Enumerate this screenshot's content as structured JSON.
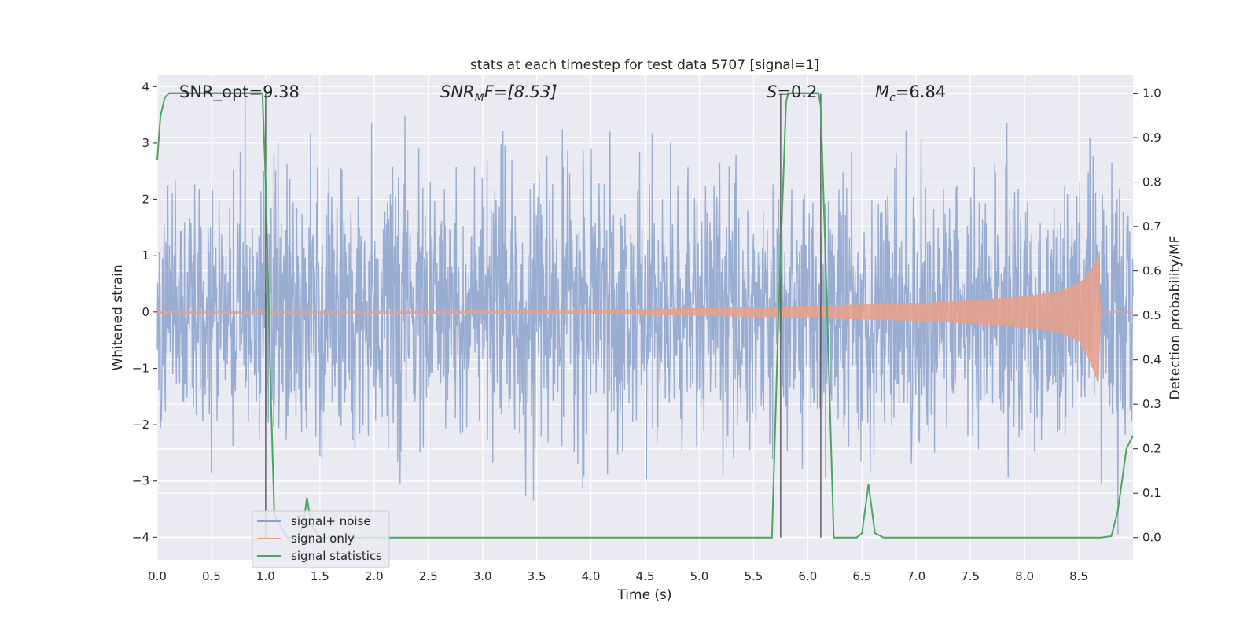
{
  "chart_data": {
    "type": "line",
    "title": "stats at each timestep for test data 5707 [signal=1]",
    "xlabel": "Time (s)",
    "ylabel": "Whitened strain",
    "ylabel_right": "Detection probability/MF",
    "xlim": [
      0,
      9
    ],
    "ylim": [
      -4.4,
      4.2
    ],
    "ylim_right": [
      -0.05,
      1.04
    ],
    "x_ticks": [
      "0.0",
      "0.5",
      "1.0",
      "1.5",
      "2.0",
      "2.5",
      "3.0",
      "3.5",
      "4.0",
      "4.5",
      "5.0",
      "5.5",
      "6.0",
      "6.5",
      "7.0",
      "7.5",
      "8.0",
      "8.5"
    ],
    "y_ticks": [
      "−4",
      "−3",
      "−2",
      "−1",
      "0",
      "1",
      "2",
      "3",
      "4"
    ],
    "y_ticks_right": [
      "0.0",
      "0.1",
      "0.2",
      "0.3",
      "0.4",
      "0.5",
      "0.6",
      "0.7",
      "0.8",
      "0.9",
      "1.0"
    ],
    "grid": true,
    "legend_placement": "lower-left",
    "annotations": {
      "snr_opt": "SNR_opt=9.38",
      "snr_mf_name": "SNR",
      "snr_mf_sub": "M",
      "snr_mf_rest": "F=[8.53]",
      "s_name": "S",
      "s_rest": "=0.2",
      "mc_name": "M",
      "mc_sub": "c",
      "mc_rest": "=6.84"
    },
    "series": [
      {
        "name": "signal+ noise",
        "color": "#8ba2cc",
        "description_values": "noise-dominated strain, amplitude roughly within ±3.5"
      },
      {
        "name": "signal only",
        "color": "#e8a08a",
        "envelope_x": [
          0.0,
          2.0,
          4.0,
          5.0,
          6.0,
          7.0,
          7.5,
          8.0,
          8.3,
          8.5,
          8.6,
          8.68,
          8.7
        ],
        "envelope_y": [
          0.02,
          0.02,
          0.03,
          0.06,
          0.1,
          0.15,
          0.2,
          0.27,
          0.35,
          0.5,
          0.68,
          1.0,
          0.0
        ]
      },
      {
        "name": "signal statistics",
        "color": "#4ca560",
        "x": [
          0.0,
          0.03,
          0.07,
          0.11,
          0.2,
          0.5,
          0.97,
          1.0,
          1.05,
          1.08,
          1.2,
          1.3,
          1.35,
          1.38,
          1.42,
          1.5,
          2.0,
          3.0,
          4.0,
          5.0,
          5.67,
          5.73,
          5.8,
          5.82,
          5.9,
          6.1,
          6.12,
          6.18,
          6.24,
          6.3,
          6.45,
          6.5,
          6.56,
          6.62,
          6.7,
          7.0,
          8.0,
          8.7,
          8.8,
          8.86,
          8.94,
          9.0
        ],
        "y": [
          0.85,
          0.95,
          0.99,
          1.0,
          1.0,
          1.0,
          1.0,
          0.8,
          0.3,
          0.05,
          0.0,
          0.0,
          0.03,
          0.09,
          0.03,
          0.0,
          0.0,
          0.0,
          0.0,
          0.0,
          0.0,
          0.5,
          0.98,
          1.0,
          1.0,
          1.0,
          0.97,
          0.5,
          0.0,
          0.0,
          0.0,
          0.01,
          0.12,
          0.01,
          0.0,
          0.0,
          0.0,
          0.0,
          0.003,
          0.06,
          0.2,
          0.23
        ]
      }
    ],
    "vlines_x": [
      1.0,
      5.75,
      6.12
    ]
  }
}
